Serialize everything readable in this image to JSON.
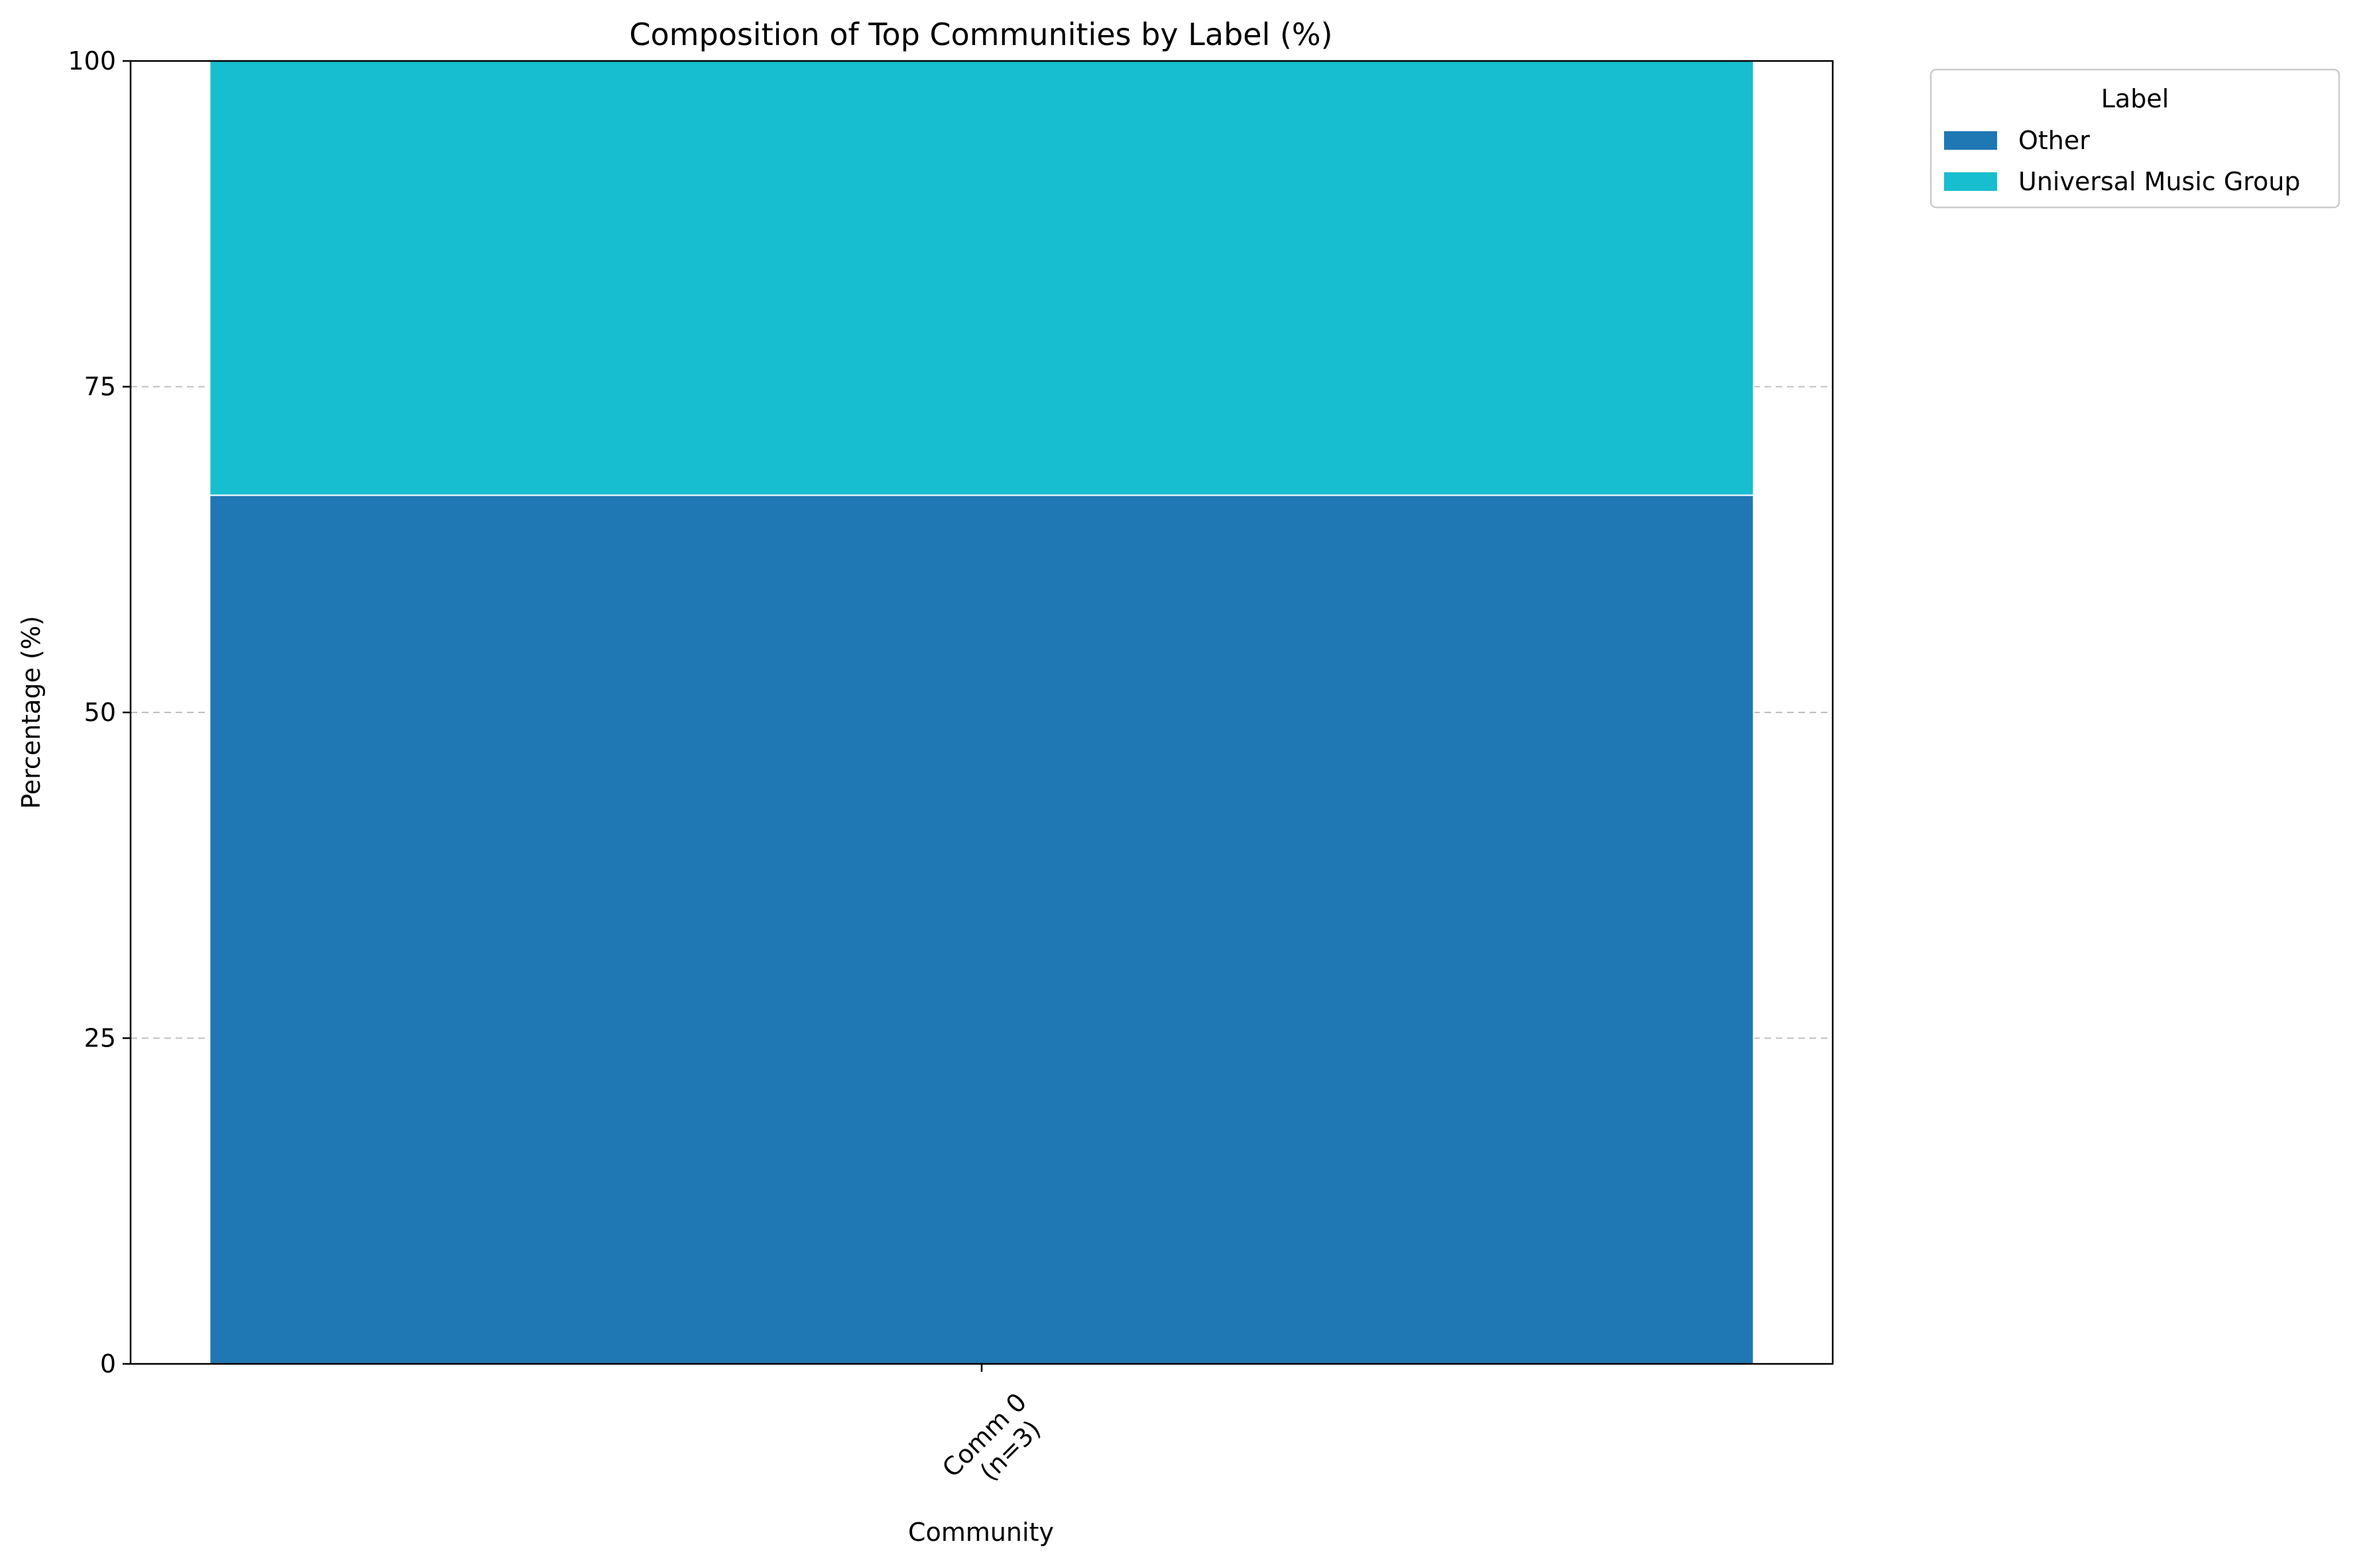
{
  "chart_data": {
    "type": "bar",
    "stacked": true,
    "title": "Composition of Top Communities by Label (%)",
    "xlabel": "Community",
    "ylabel": "Percentage (%)",
    "categories": [
      "Comm 0\n(n=3)"
    ],
    "series": [
      {
        "name": "Other",
        "values": [
          66.67
        ],
        "color": "#1f77b4"
      },
      {
        "name": "Universal Music Group",
        "values": [
          33.33
        ],
        "color": "#17becf"
      }
    ],
    "ylim": [
      0,
      100
    ],
    "yticks": [
      0,
      25,
      50,
      75,
      100
    ],
    "grid": {
      "y": true,
      "x": false,
      "style": "dashed"
    },
    "legend": {
      "title": "Label",
      "placement": "outside-top-right"
    }
  }
}
